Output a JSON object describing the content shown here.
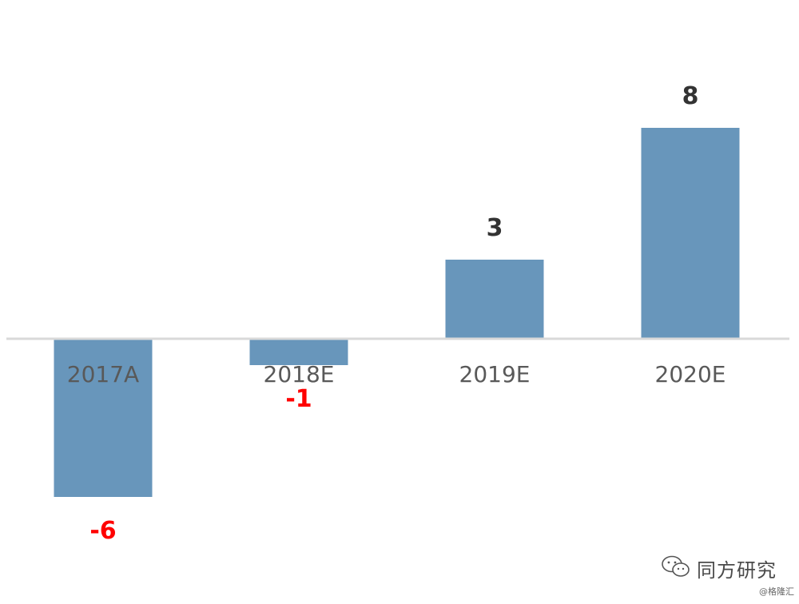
{
  "chart_data": {
    "type": "bar",
    "categories": [
      "2017A",
      "2018E",
      "2019E",
      "2020E"
    ],
    "values": [
      -6,
      -1,
      3,
      8
    ],
    "data_labels": [
      "-6",
      "-1",
      "3",
      "8"
    ],
    "title": "",
    "xlabel": "",
    "ylabel": "",
    "ylim": [
      -8,
      12
    ],
    "grid": false,
    "legend": "none",
    "colors": {
      "bar": "#6896bb",
      "positive_label": "#333333",
      "negative_label": "#ff0000",
      "axis_line": "#d9d9d9",
      "tick_label": "#595959"
    }
  },
  "watermark": {
    "brand": "同方研究",
    "credit": "@格隆汇",
    "icon": "wechat-icon"
  }
}
